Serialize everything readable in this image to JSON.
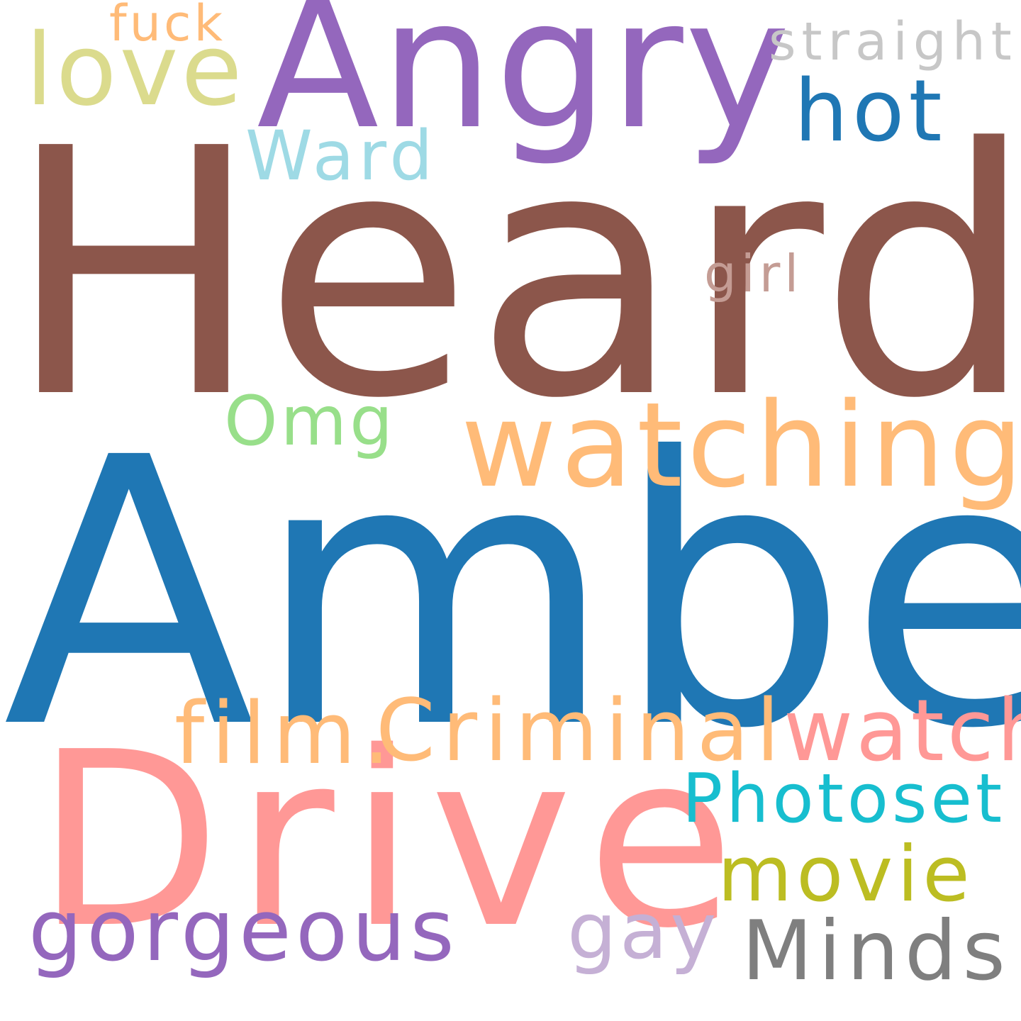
{
  "words": {
    "heard": {
      "text": "Heard",
      "color": "#8c564b"
    },
    "amber": {
      "text": "Amber",
      "color": "#1f77b4"
    },
    "drive": {
      "text": "Drive",
      "color": "#ff9896"
    },
    "angry": {
      "text": "Angry",
      "color": "#9467bd"
    },
    "watching": {
      "text": "watching",
      "color": "#ffbb78"
    },
    "criminal": {
      "text": "Criminal",
      "color": "#ffbb78"
    },
    "love": {
      "text": "love",
      "color": "#dbdb8d"
    },
    "hot": {
      "text": "hot",
      "color": "#1f77b4"
    },
    "film": {
      "text": "film.",
      "color": "#ffbb78"
    },
    "watch": {
      "text": "watch",
      "color": "#ff9896"
    },
    "photoset": {
      "text": "Photoset",
      "color": "#17becf"
    },
    "movie": {
      "text": "movie",
      "color": "#bcbd22"
    },
    "gorgeous": {
      "text": "gorgeous",
      "color": "#9467bd"
    },
    "gay": {
      "text": "gay",
      "color": "#c5b0d5"
    },
    "minds": {
      "text": "Minds",
      "color": "#7f7f7f"
    },
    "ward": {
      "text": "Ward",
      "color": "#9edae5"
    },
    "omg": {
      "text": "Omg",
      "color": "#98df8a"
    },
    "girl": {
      "text": "girl",
      "color": "#c49c94"
    },
    "straight": {
      "text": "straight",
      "color": "#c7c7c7"
    },
    "fuck": {
      "text": "fuck",
      "color": "#ffbb78"
    }
  }
}
